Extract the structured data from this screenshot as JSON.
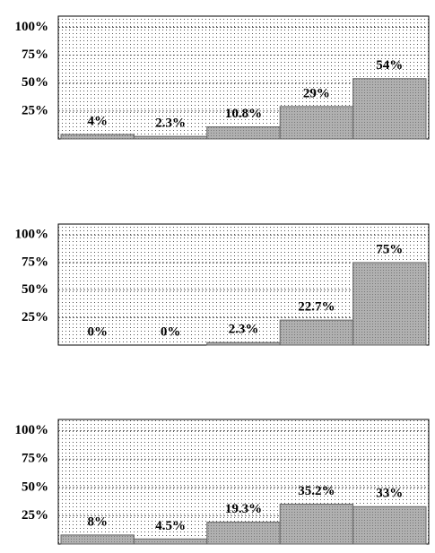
{
  "chart_data": [
    {
      "type": "bar",
      "categories": [
        null,
        null,
        null,
        null,
        null
      ],
      "values": [
        4,
        2.3,
        10.8,
        29,
        54
      ],
      "value_labels": [
        "4%",
        "2.3%",
        "10.8%",
        "29%",
        "54%"
      ],
      "color": "#b0b0b0",
      "ylim": [
        0,
        110
      ],
      "yticks": [
        {
          "value": 25,
          "label": "25%"
        },
        {
          "value": 50,
          "label": "50%"
        },
        {
          "value": 75,
          "label": "75%"
        },
        {
          "value": 100,
          "label": "100%"
        }
      ],
      "grid": true
    },
    {
      "type": "bar",
      "categories": [
        null,
        null,
        null,
        null,
        null
      ],
      "values": [
        0,
        0,
        2.3,
        22.7,
        75
      ],
      "value_labels": [
        "0%",
        "0%",
        "2.3%",
        "22.7%",
        "75%"
      ],
      "color": "#b0b0b0",
      "ylim": [
        0,
        110
      ],
      "yticks": [
        {
          "value": 25,
          "label": "25%"
        },
        {
          "value": 50,
          "label": "50%"
        },
        {
          "value": 75,
          "label": "75%"
        },
        {
          "value": 100,
          "label": "100%"
        }
      ],
      "grid": true
    },
    {
      "type": "bar",
      "categories": [
        null,
        null,
        null,
        null,
        null
      ],
      "values": [
        8,
        4.5,
        19.3,
        35.2,
        33
      ],
      "value_labels": [
        "8%",
        "4.5%",
        "19.3%",
        "35.2%",
        "33%"
      ],
      "color": "#b0b0b0",
      "ylim": [
        0,
        110
      ],
      "yticks": [
        {
          "value": 25,
          "label": "25%"
        },
        {
          "value": 50,
          "label": "50%"
        },
        {
          "value": 75,
          "label": "75%"
        },
        {
          "value": 100,
          "label": "100%"
        }
      ],
      "grid": true
    }
  ]
}
